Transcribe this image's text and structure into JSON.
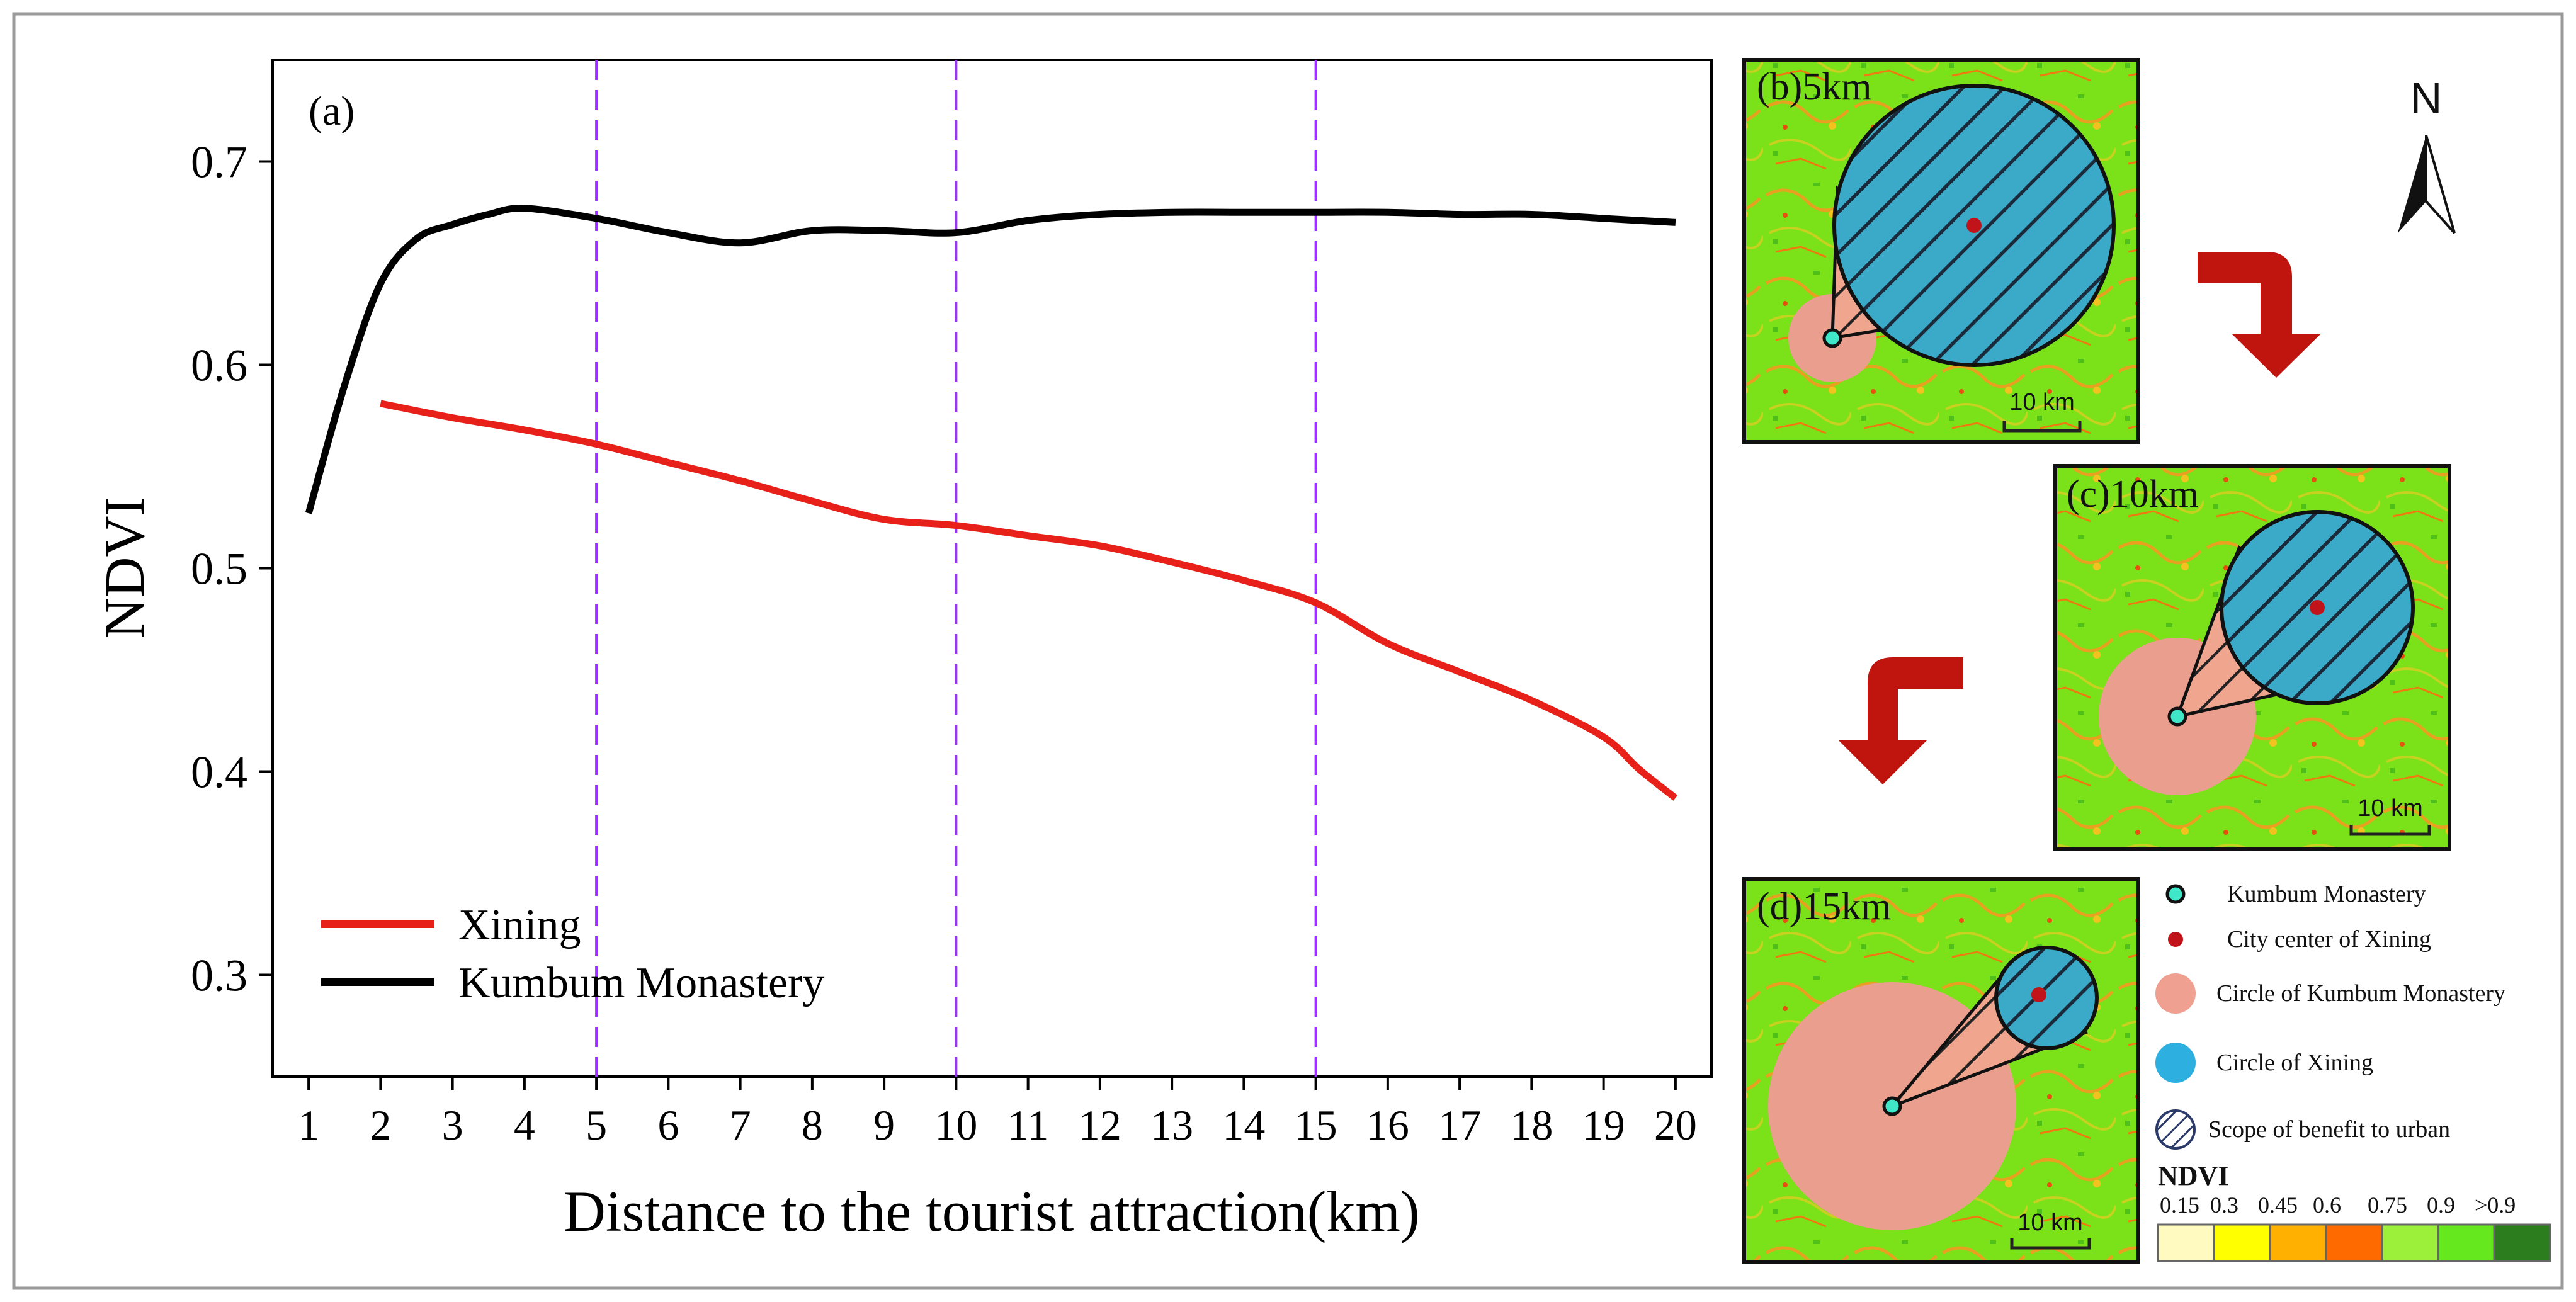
{
  "chart_data": {
    "type": "line",
    "panel_label": "(a)",
    "xlabel": "Distance to the tourist attraction(km)",
    "ylabel": "NDVI",
    "xlim": [
      0.5,
      20.5
    ],
    "ylim": [
      0.25,
      0.75
    ],
    "x_ticks": [
      1,
      2,
      3,
      4,
      5,
      6,
      7,
      8,
      9,
      10,
      11,
      12,
      13,
      14,
      15,
      16,
      17,
      18,
      19,
      20
    ],
    "y_ticks": [
      "0.3",
      "0.4",
      "0.5",
      "0.6",
      "0.7"
    ],
    "y_tick_values": [
      0.3,
      0.4,
      0.5,
      0.6,
      0.7
    ],
    "vlines": [
      5,
      10,
      15
    ],
    "vline_color": "#9b30ff",
    "series": [
      {
        "name": "Xining",
        "color": "#e8201a",
        "x": [
          2,
          3,
          4,
          5,
          6,
          7,
          8,
          9,
          10,
          11,
          12,
          13,
          14,
          15,
          16,
          17,
          18,
          19,
          19.5,
          20
        ],
        "y": [
          0.581,
          0.574,
          0.568,
          0.561,
          0.552,
          0.543,
          0.533,
          0.524,
          0.521,
          0.516,
          0.511,
          0.503,
          0.494,
          0.483,
          0.463,
          0.449,
          0.435,
          0.417,
          0.401,
          0.387
        ]
      },
      {
        "name": "Kumbum Monastery",
        "color": "#000000",
        "x": [
          1,
          1.5,
          2,
          2.5,
          3,
          3.5,
          4,
          5,
          6,
          7,
          8,
          9,
          10,
          11,
          12,
          13,
          14,
          15,
          16,
          17,
          18,
          19,
          20
        ],
        "y": [
          0.527,
          0.59,
          0.64,
          0.662,
          0.669,
          0.674,
          0.677,
          0.672,
          0.665,
          0.66,
          0.666,
          0.666,
          0.665,
          0.671,
          0.674,
          0.675,
          0.675,
          0.675,
          0.675,
          0.674,
          0.674,
          0.672,
          0.67
        ]
      }
    ]
  },
  "maps": {
    "b": {
      "label": "(b)5km",
      "scale": "10  km"
    },
    "c": {
      "label": "(c)10km",
      "scale": "10 km"
    },
    "d": {
      "label": "(d)15km",
      "scale": "10 km"
    }
  },
  "north": "N",
  "legend": {
    "kumbum": "Kumbum Monastery",
    "city": "City center of Xining",
    "circle_kumbum": "Circle of Kumbum Monastery",
    "circle_xining": "Circle of Xining",
    "scope": "Scope of benefit to urban",
    "ndvi_title": "NDVI",
    "ndvi_ticks": [
      "0.15",
      "0.3",
      "0.45",
      "0.6",
      "0.75",
      "0.9",
      ">0.9"
    ],
    "ndvi_colors": [
      "#fffbc0",
      "#ffff00",
      "#ffb000",
      "#ff6a00",
      "#9cf03a",
      "#66e81f",
      "#2c7d1d"
    ]
  }
}
